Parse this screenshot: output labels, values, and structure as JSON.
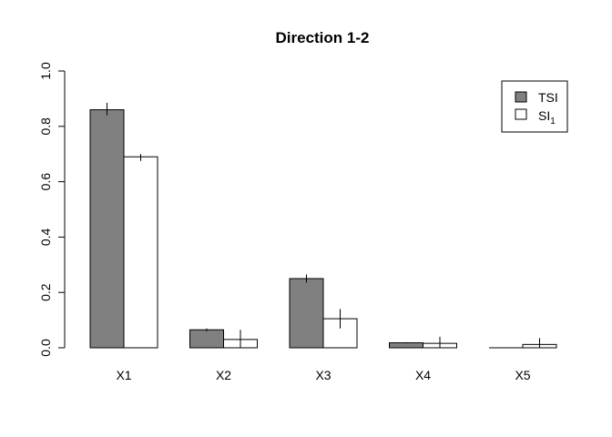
{
  "chart_data": {
    "type": "bar",
    "title": "Direction 1-2",
    "xlabel": "",
    "ylabel": "",
    "categories": [
      "X1",
      "X2",
      "X3",
      "X4",
      "X5"
    ],
    "ylim": [
      0,
      1
    ],
    "yticks": [
      "0.0",
      "0.2",
      "0.4",
      "0.6",
      "0.8",
      "1.0"
    ],
    "grid": false,
    "legend_position": "top-right",
    "series": [
      {
        "name": "TSI",
        "color": "#808080",
        "values": [
          0.86,
          0.065,
          0.25,
          0.018,
          0.0
        ],
        "error_low": [
          0.84,
          0.06,
          0.235,
          0.016,
          0.0
        ],
        "error_high": [
          0.885,
          0.07,
          0.265,
          0.02,
          0.0
        ]
      },
      {
        "name": "SI",
        "name_subscript": "1",
        "color": "#ffffff",
        "values": [
          0.69,
          0.03,
          0.105,
          0.016,
          0.012
        ],
        "error_low": [
          0.675,
          0.0,
          0.07,
          0.0,
          0.0
        ],
        "error_high": [
          0.7,
          0.065,
          0.14,
          0.04,
          0.035
        ]
      }
    ]
  }
}
